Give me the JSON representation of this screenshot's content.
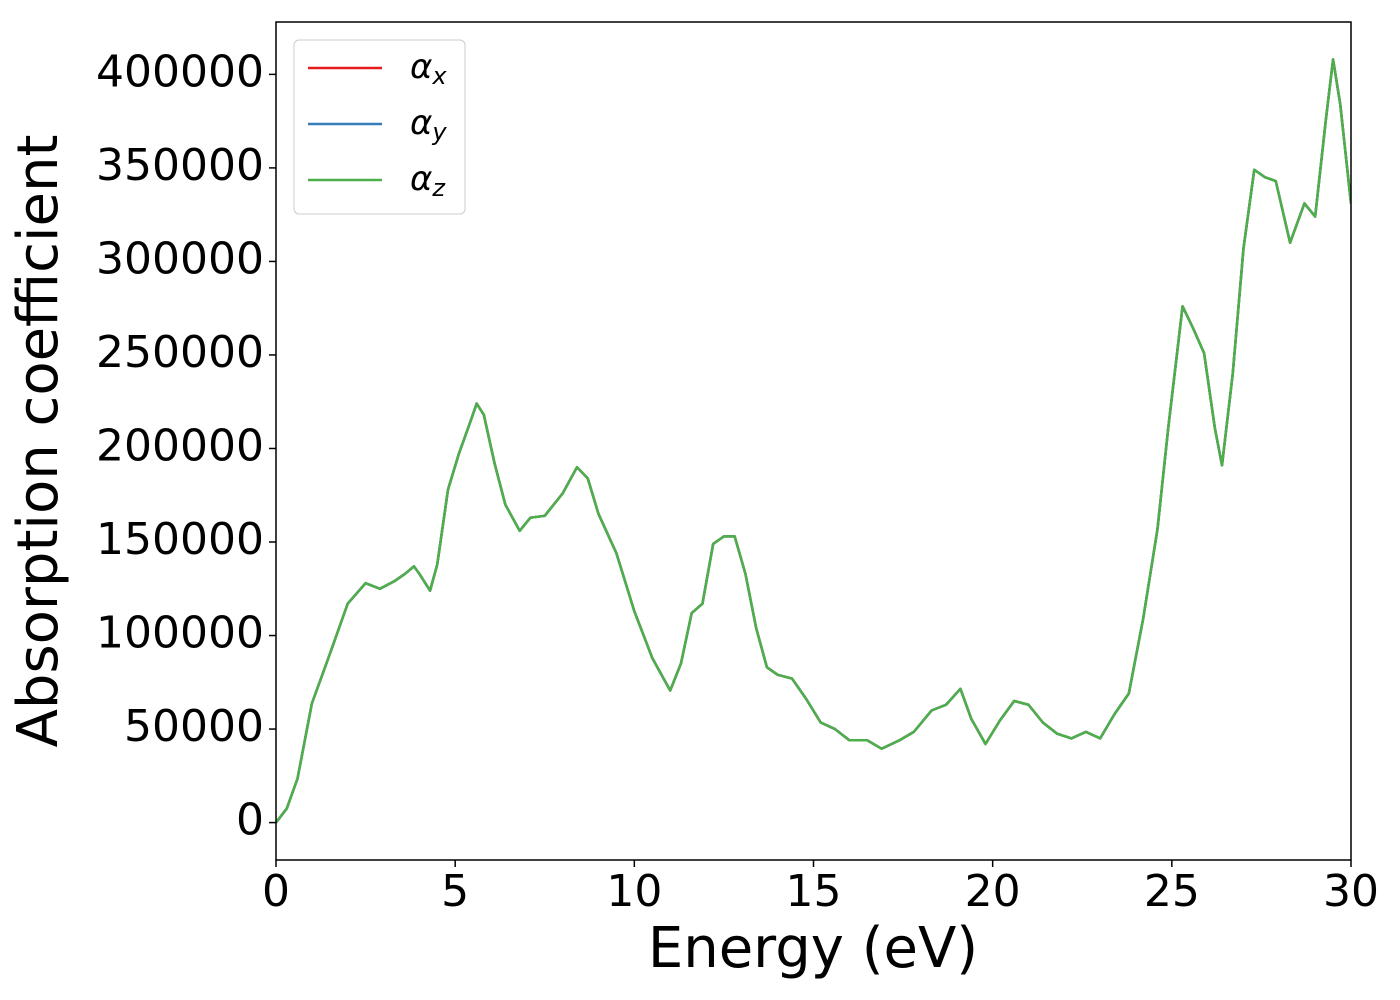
{
  "chart_data": {
    "type": "line",
    "xlabel": "Energy (eV)",
    "ylabel": "Absorption coefficient",
    "x": [
      0,
      0.3,
      0.6,
      1.0,
      1.5,
      2.0,
      2.5,
      2.9,
      3.3,
      3.6,
      3.85,
      4.0,
      4.3,
      4.5,
      4.8,
      5.1,
      5.4,
      5.6,
      5.8,
      6.1,
      6.4,
      6.8,
      7.1,
      7.5,
      8.0,
      8.4,
      8.7,
      9.0,
      9.5,
      10.0,
      10.5,
      11.0,
      11.3,
      11.6,
      11.9,
      12.2,
      12.5,
      12.8,
      13.1,
      13.4,
      13.7,
      14.0,
      14.4,
      14.8,
      15.2,
      15.6,
      16.0,
      16.5,
      16.9,
      17.4,
      17.8,
      18.3,
      18.7,
      19.1,
      19.4,
      19.8,
      20.2,
      20.6,
      21.0,
      21.4,
      21.8,
      22.2,
      22.6,
      23.0,
      23.4,
      23.8,
      24.2,
      24.6,
      24.9,
      25.3,
      25.6,
      25.9,
      26.2,
      26.4,
      26.7,
      27.0,
      27.3,
      27.6,
      27.9,
      28.3,
      28.7,
      29.0,
      29.3,
      29.5,
      29.7,
      30
    ],
    "series": [
      {
        "name": "αx",
        "color": "#e41a1c",
        "values": [
          0,
          7500,
          23500,
          63600,
          90000,
          117000,
          128000,
          125000,
          129000,
          133000,
          137000,
          133000,
          124000,
          138000,
          178000,
          197000,
          213000,
          224000,
          218000,
          192000,
          170000,
          156000,
          163000,
          164000,
          176000,
          190000,
          184000,
          165000,
          144000,
          113000,
          88000,
          70600,
          85000,
          112000,
          117000,
          149000,
          153000,
          153000,
          133000,
          104000,
          83000,
          79000,
          77000,
          66000,
          53500,
          50000,
          44000,
          44000,
          39500,
          44000,
          48500,
          60000,
          63000,
          71500,
          55600,
          42000,
          54500,
          65000,
          63000,
          53500,
          47500,
          45000,
          48500,
          45000,
          58000,
          69000,
          109000,
          157000,
          211000,
          276000,
          264000,
          251000,
          211000,
          191000,
          240000,
          307000,
          349000,
          345000,
          343000,
          310000,
          331000,
          324000,
          376000,
          408000,
          384000,
          331000
        ]
      },
      {
        "name": "αy",
        "color": "#377eb8",
        "values": [
          0,
          7500,
          23500,
          63600,
          90000,
          117000,
          128000,
          125000,
          129000,
          133000,
          137000,
          133000,
          124000,
          138000,
          178000,
          197000,
          213000,
          224000,
          218000,
          192000,
          170000,
          156000,
          163000,
          164000,
          176000,
          190000,
          184000,
          165000,
          144000,
          113000,
          88000,
          70600,
          85000,
          112000,
          117000,
          149000,
          153000,
          153000,
          133000,
          104000,
          83000,
          79000,
          77000,
          66000,
          53500,
          50000,
          44000,
          44000,
          39500,
          44000,
          48500,
          60000,
          63000,
          71500,
          55600,
          42000,
          54500,
          65000,
          63000,
          53500,
          47500,
          45000,
          48500,
          45000,
          58000,
          69000,
          109000,
          157000,
          211000,
          276000,
          264000,
          251000,
          211000,
          191000,
          240000,
          307000,
          349000,
          345000,
          343000,
          310000,
          331000,
          324000,
          376000,
          408000,
          384000,
          331000
        ]
      },
      {
        "name": "αz",
        "color": "#4daf4a",
        "values": [
          0,
          7500,
          23500,
          63600,
          90000,
          117000,
          128000,
          125000,
          129000,
          133000,
          137000,
          133000,
          124000,
          138000,
          178000,
          197000,
          213000,
          224000,
          218000,
          192000,
          170000,
          156000,
          163000,
          164000,
          176000,
          190000,
          184000,
          165000,
          144000,
          113000,
          88000,
          70600,
          85000,
          112000,
          117000,
          149000,
          153000,
          153000,
          133000,
          104000,
          83000,
          79000,
          77000,
          66000,
          53500,
          50000,
          44000,
          44000,
          39500,
          44000,
          48500,
          60000,
          63000,
          71500,
          55600,
          42000,
          54500,
          65000,
          63000,
          53500,
          47500,
          45000,
          48500,
          45000,
          58000,
          69000,
          109000,
          157000,
          211000,
          276000,
          264000,
          251000,
          211000,
          191000,
          240000,
          307000,
          349000,
          345000,
          343000,
          310000,
          331000,
          324000,
          376000,
          408000,
          384000,
          331000
        ]
      }
    ],
    "xlim": [
      0,
      30
    ],
    "ylim": [
      -20000,
      428000
    ],
    "xticks": [
      0,
      5,
      10,
      15,
      20,
      25,
      30
    ],
    "yticks": [
      0,
      50000,
      100000,
      150000,
      200000,
      250000,
      300000,
      350000,
      400000
    ],
    "grid": false,
    "legend": "upper left"
  }
}
